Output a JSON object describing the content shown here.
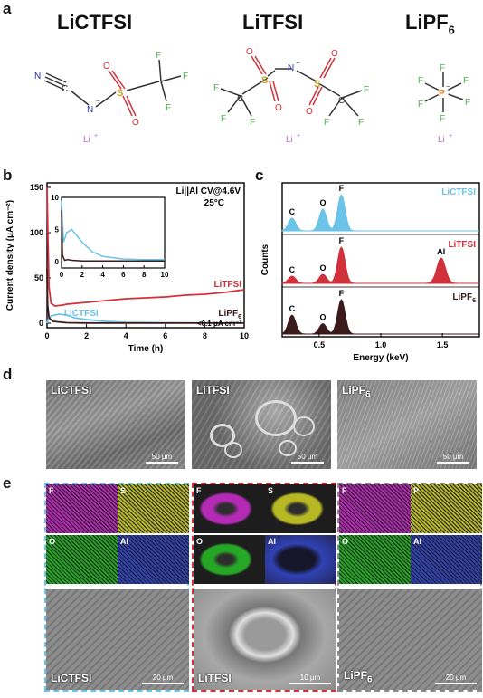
{
  "panel_labels": {
    "a": "a",
    "b": "b",
    "c": "c",
    "d": "d",
    "e": "e"
  },
  "panel_a": {
    "salts": [
      {
        "name": "LiCTFSI"
      },
      {
        "name": "LiTFSI"
      },
      {
        "name": "LiPF",
        "sub": "6"
      }
    ],
    "atoms": {
      "N": "N",
      "C": "C",
      "S": "S",
      "O": "O",
      "F": "F",
      "P": "P",
      "Li_plus": "Li+",
      "N_minus": "N−",
      "P_minus": "P−"
    }
  },
  "chart_data": [
    {
      "type": "line",
      "title": "Li||Al CV@4.6V",
      "subtitle": "25°C",
      "xlabel": "Time (h)",
      "ylabel": "Current density (μA cm⁻²)",
      "xlim": [
        0,
        10
      ],
      "ylim": [
        -5,
        155
      ],
      "xticks": [
        0,
        2,
        4,
        6,
        8,
        10
      ],
      "yticks": [
        0,
        50,
        100,
        150
      ],
      "annotation": "<0.1 μA cm⁻²",
      "series": [
        {
          "name": "LiTFSI",
          "color": "#d0313a",
          "x": [
            0,
            0.05,
            0.1,
            0.2,
            0.4,
            0.8,
            1,
            2,
            3,
            4,
            5,
            6,
            7,
            8,
            9,
            10
          ],
          "y": [
            150,
            90,
            40,
            22,
            19,
            20,
            21,
            23,
            25,
            27,
            28,
            29,
            31,
            32,
            34,
            37
          ]
        },
        {
          "name": "LiCTFSI",
          "color": "#6bc3e8",
          "x": [
            0,
            0.05,
            0.2,
            0.6,
            1.0,
            1.4,
            2,
            3,
            4,
            6,
            8,
            10
          ],
          "y": [
            0,
            4,
            8,
            10,
            9,
            6,
            4,
            2,
            1,
            0.5,
            0.3,
            0.3
          ]
        },
        {
          "name": "LiPF6",
          "color": "#3a1a1a",
          "x": [
            0,
            0.03,
            0.1,
            0.3,
            1,
            2,
            4,
            6,
            8,
            10
          ],
          "y": [
            60,
            20,
            6,
            2,
            0.5,
            0.2,
            0.1,
            0.1,
            0.1,
            0.1
          ]
        }
      ],
      "inset": {
        "xlim": [
          0,
          10
        ],
        "ylim": [
          -1,
          10
        ],
        "xticks": [
          0,
          2,
          4,
          6,
          8,
          10
        ],
        "yticks": [
          0,
          5,
          10
        ],
        "series": [
          {
            "name": "LiCTFSI",
            "color": "#6bc3e8",
            "x": [
              0,
              0.2,
              0.5,
              1,
              1.5,
              2,
              3,
              4,
              6,
              8,
              10
            ],
            "y": [
              9.5,
              3,
              4.5,
              5,
              4,
              3,
              1.5,
              0.8,
              0.4,
              0.3,
              0.3
            ]
          },
          {
            "name": "LiPF6",
            "color": "#3a1a1a",
            "x": [
              0,
              0.1,
              0.3,
              0.6,
              1,
              2,
              3,
              4,
              6,
              8,
              10
            ],
            "y": [
              8,
              1,
              0.2,
              0.3,
              0.2,
              0.1,
              0.1,
              0.1,
              0.1,
              0.1,
              0.1
            ]
          }
        ]
      }
    },
    {
      "type": "line",
      "xlabel": "Energy (keV)",
      "ylabel": "Counts",
      "xlim": [
        0.2,
        1.8
      ],
      "xticks": [
        0.5,
        1.0,
        1.5
      ],
      "tick_labels": [
        "0.5",
        "1.0",
        "1.5"
      ],
      "series": [
        {
          "name": "LiCTFSI",
          "color": "#6bc3e8",
          "peaks": [
            {
              "x": 0.28,
              "h": 0.35,
              "label": "C"
            },
            {
              "x": 0.53,
              "h": 0.6,
              "label": "O"
            },
            {
              "x": 0.68,
              "h": 1.0,
              "label": "F"
            }
          ]
        },
        {
          "name": "LiTFSI",
          "color": "#d0313a",
          "peaks": [
            {
              "x": 0.28,
              "h": 0.2,
              "label": "C"
            },
            {
              "x": 0.53,
              "h": 0.25,
              "label": "O"
            },
            {
              "x": 0.68,
              "h": 1.0,
              "label": "F"
            },
            {
              "x": 1.49,
              "h": 0.7,
              "label": "Al"
            }
          ]
        },
        {
          "name": "LiPF6",
          "color": "#3a1a1a",
          "peaks": [
            {
              "x": 0.28,
              "h": 0.55,
              "label": "C"
            },
            {
              "x": 0.53,
              "h": 0.3,
              "label": "O"
            },
            {
              "x": 0.68,
              "h": 1.0,
              "label": "F"
            }
          ]
        }
      ]
    }
  ],
  "panel_d": {
    "images": [
      {
        "label": "LiCTFSI",
        "scale": "50 μm"
      },
      {
        "label": "LiTFSI",
        "scale": "50 μm"
      },
      {
        "label": "LiPF",
        "sub": "6",
        "scale": "50 μm"
      }
    ]
  },
  "panel_e": {
    "groups": [
      {
        "label": "LiCTFSI",
        "border": "#6bc3e8",
        "scale": "20 μm",
        "maps": [
          "F",
          "S",
          "O",
          "Al"
        ]
      },
      {
        "label": "LiTFSI",
        "border": "#d0313a",
        "scale": "10 μm",
        "maps": [
          "F",
          "S",
          "O",
          "Al"
        ]
      },
      {
        "label": "LiPF",
        "sub": "6",
        "border": "#8a8a8a",
        "scale": "20 μm",
        "maps": [
          "F",
          "P",
          "O",
          "Al"
        ]
      }
    ],
    "map_colors": {
      "F": "#b01fb0",
      "S": "#b5b51a",
      "P": "#b5b51a",
      "O": "#1aa31a",
      "Al": "#2438b0"
    }
  }
}
